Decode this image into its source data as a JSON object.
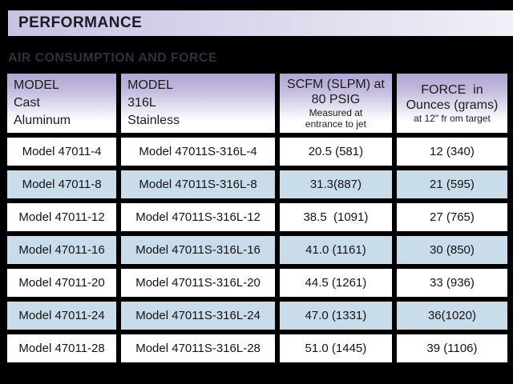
{
  "colors": {
    "background": "#000000",
    "bar_gradient_start": "#c8c2e3",
    "bar_gradient_end": "#f1eff7",
    "header_gradient_top": "#b0a5d3",
    "row_white": "#ffffff",
    "row_blue": "#c9dcea",
    "section_title_color": "#342e3f"
  },
  "performance_bar": {
    "title": "PERFORMANCE"
  },
  "section": {
    "title": "AIR CONSUMPTION AND FORCE"
  },
  "table": {
    "columns": [
      {
        "main": "MODEL\nCast\nAluminum",
        "sub": ""
      },
      {
        "main": "MODEL\n316L\nStainless",
        "sub": ""
      },
      {
        "main": "SCFM (SLPM) at\n80 PSIG",
        "sub": "Measured at\nentrance to jet"
      },
      {
        "main": "FORCE  in\nOunces (grams)",
        "sub": "at 12\" fr om target"
      }
    ],
    "rows": [
      [
        "Model 47011-4",
        "Model 47011S-316L-4",
        "20.5 (581)",
        "12 (340)"
      ],
      [
        "Model 47011-8",
        "Model 47011S-316L-8",
        "31.3(887)",
        "21 (595)"
      ],
      [
        "Model 47011-12",
        "Model 47011S-316L-12",
        "38.5  (1091)",
        "27 (765)"
      ],
      [
        "Model 47011-16",
        "Model 47011S-316L-16",
        "41.0 (1161)",
        "30 (850)"
      ],
      [
        "Model 47011-20",
        "Model 47011S-316L-20",
        "44.5 (1261)",
        "33 (936)"
      ],
      [
        "Model 47011-24",
        "Model 47011S-316L-24",
        "47.0 (1331)",
        "36(1020)"
      ],
      [
        "Model 47011-28",
        "Model 47011S-316L-28",
        "51.0 (1445)",
        "39 (1106)"
      ]
    ]
  }
}
